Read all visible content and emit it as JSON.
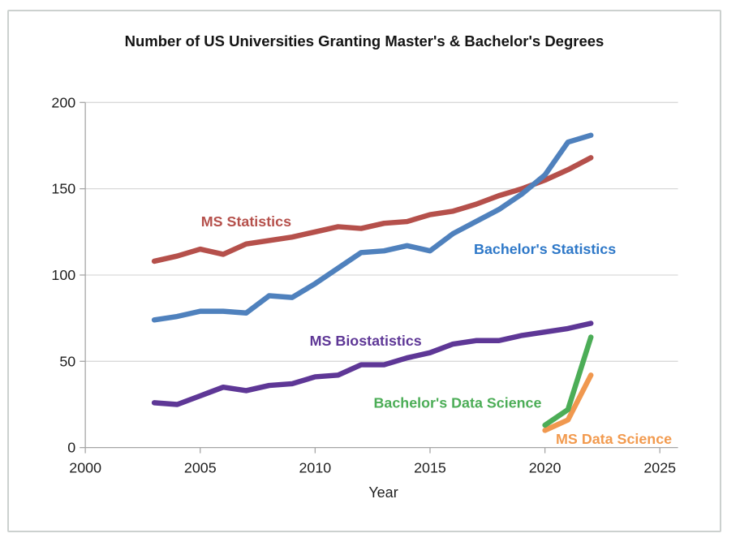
{
  "chart_data": {
    "type": "line",
    "title": "Number of US Universities Granting Master's & Bachelor's Degrees",
    "xlabel": "Year",
    "ylabel": "",
    "xlim": [
      2000,
      2025.8
    ],
    "ylim": [
      0,
      200
    ],
    "x_ticks": [
      2000,
      2005,
      2010,
      2015,
      2020,
      2025
    ],
    "y_ticks": [
      0,
      50,
      100,
      150,
      200
    ],
    "grid": "horizontal",
    "legend": "inline-labels",
    "style": {
      "grid_color": "#D9D9D9",
      "axis_color": "#A6A6A6",
      "text_color": "#1F1F1F",
      "line_width": 6.5
    },
    "series": [
      {
        "name": "MS Statistics",
        "color": "#B5504B",
        "x": [
          2003,
          2004,
          2005,
          2006,
          2007,
          2008,
          2009,
          2010,
          2011,
          2012,
          2013,
          2014,
          2015,
          2016,
          2017,
          2018,
          2019,
          2020,
          2021,
          2022
        ],
        "values": [
          108,
          111,
          115,
          112,
          118,
          120,
          122,
          125,
          128,
          127,
          130,
          131,
          135,
          137,
          141,
          146,
          150,
          155,
          161,
          168
        ]
      },
      {
        "name": "Bachelor's Statistics",
        "color": "#4F81BD",
        "x": [
          2003,
          2004,
          2005,
          2006,
          2007,
          2008,
          2009,
          2010,
          2011,
          2012,
          2013,
          2014,
          2015,
          2016,
          2017,
          2018,
          2019,
          2020,
          2021,
          2022
        ],
        "values": [
          74,
          76,
          79,
          79,
          78,
          88,
          87,
          95,
          104,
          113,
          114,
          117,
          114,
          124,
          131,
          138,
          147,
          158,
          177,
          181
        ]
      },
      {
        "name": "MS Biostatistics",
        "color": "#5E3796",
        "x": [
          2003,
          2004,
          2005,
          2006,
          2007,
          2008,
          2009,
          2010,
          2011,
          2012,
          2013,
          2014,
          2015,
          2016,
          2017,
          2018,
          2019,
          2020,
          2021,
          2022
        ],
        "values": [
          26,
          25,
          30,
          35,
          33,
          36,
          37,
          41,
          42,
          48,
          48,
          52,
          55,
          60,
          62,
          62,
          65,
          67,
          69,
          72
        ]
      },
      {
        "name": "MS Data Science",
        "color": "#F0984F",
        "x": [
          2020,
          2021,
          2022
        ],
        "values": [
          10,
          16,
          42
        ]
      },
      {
        "name": "Bachelor's Data Science",
        "color": "#4CAD57",
        "x": [
          2020,
          2021,
          2022
        ],
        "values": [
          13,
          22,
          64
        ]
      }
    ],
    "annotations": [
      {
        "text": "MS Statistics",
        "color": "#B5504B",
        "at_year": 2007,
        "at_value": 131
      },
      {
        "text": "Bachelor's Statistics",
        "color": "#2E78C8",
        "at_year": 2020,
        "at_value": 115
      },
      {
        "text": "MS Biostatistics",
        "color": "#5E3796",
        "at_year": 2012.2,
        "at_value": 62
      },
      {
        "text": "Bachelor's Data Science",
        "color": "#4CAD57",
        "at_year": 2016.2,
        "at_value": 26
      },
      {
        "text": "MS Data Science",
        "color": "#F29A4E",
        "at_year": 2023,
        "at_value": 5
      }
    ]
  }
}
